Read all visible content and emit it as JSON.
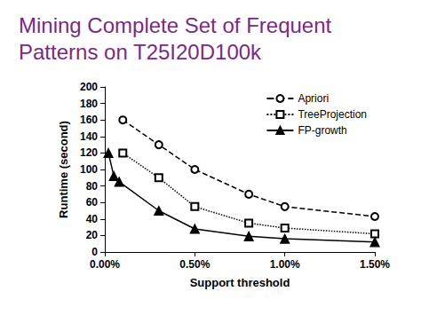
{
  "chart_data": {
    "type": "line",
    "title": "Mining Complete Set of Frequent Patterns on T25I20D100k",
    "x_label": "Support threshold",
    "y_label": "Runtime (second)",
    "xlim": [
      0,
      1.5
    ],
    "xticks": [
      {
        "value": 0,
        "label": "0.00%"
      },
      {
        "value": 0.5,
        "label": "0.50%"
      },
      {
        "value": 1,
        "label": "1.00%"
      },
      {
        "value": 1.5,
        "label": "1.50%"
      }
    ],
    "ylim": [
      0,
      200
    ],
    "yticks": [
      0,
      20,
      40,
      60,
      80,
      100,
      120,
      140,
      160,
      180,
      200
    ],
    "grid": false,
    "legend": "upper right",
    "series": [
      {
        "name": "Apriori",
        "color": "#000000",
        "marker": "circle_open",
        "line_style": "dashed",
        "x": [
          0.1,
          0.3,
          0.5,
          0.8,
          1.0,
          1.5
        ],
        "values": [
          160,
          130,
          100,
          70,
          55,
          43
        ]
      },
      {
        "name": "TreeProjection",
        "color": "#000000",
        "marker": "square_open",
        "line_style": "dotted",
        "x": [
          0.1,
          0.3,
          0.5,
          0.8,
          1.0,
          1.5
        ],
        "values": [
          120,
          90,
          55,
          35,
          29,
          22
        ]
      },
      {
        "name": "FP-growth",
        "color": "#000000",
        "marker": "triangle",
        "line_style": "solid",
        "x": [
          0.02,
          0.05,
          0.08,
          0.3,
          0.5,
          0.8,
          1.0,
          1.5
        ],
        "values": [
          120,
          92,
          85,
          50,
          28,
          19,
          16,
          12
        ]
      }
    ]
  }
}
